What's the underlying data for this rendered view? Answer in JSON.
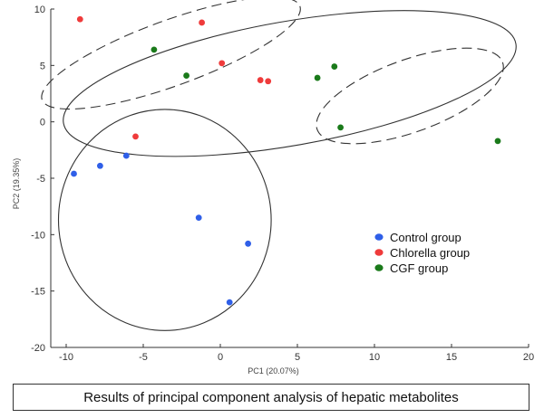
{
  "chart_data": {
    "type": "scatter",
    "title": "",
    "xlabel": "PC1 (20.07%)",
    "ylabel": "PC2 (19.35%)",
    "xlim": [
      -11,
      20
    ],
    "ylim": [
      -20,
      10
    ],
    "xticks": [
      -10,
      -5,
      0,
      5,
      10,
      15,
      20
    ],
    "yticks": [
      10,
      5,
      0,
      -5,
      -10,
      -15,
      -20
    ],
    "grid": false,
    "legend_position": "right",
    "series": [
      {
        "name": "Control group",
        "color": "#2f5fe8",
        "points": [
          [
            -9.5,
            -4.6
          ],
          [
            -7.8,
            -3.9
          ],
          [
            -6.1,
            -3.0
          ],
          [
            -1.4,
            -8.5
          ],
          [
            1.8,
            -10.8
          ],
          [
            0.6,
            -16.0
          ]
        ]
      },
      {
        "name": "Chlorella group",
        "color": "#ef3b3b",
        "points": [
          [
            -9.1,
            9.1
          ],
          [
            -1.2,
            8.8
          ],
          [
            0.1,
            5.2
          ],
          [
            2.6,
            3.7
          ],
          [
            3.1,
            3.6
          ],
          [
            -5.5,
            -1.3
          ]
        ]
      },
      {
        "name": "CGF group",
        "color": "#1a7a1a",
        "points": [
          [
            -4.3,
            6.4
          ],
          [
            -2.2,
            4.1
          ],
          [
            7.4,
            4.9
          ],
          [
            6.3,
            3.9
          ],
          [
            7.8,
            -0.5
          ],
          [
            18.0,
            -1.7
          ]
        ]
      }
    ],
    "clusters": [
      {
        "style": "solid",
        "center": [
          4.5,
          3.4
        ],
        "radii": [
          14.9,
          5.5
        ],
        "rotation_deg": -10
      },
      {
        "style": "dashed",
        "center": [
          -3.2,
          6.1
        ],
        "radii": [
          8.9,
          2.9
        ],
        "rotation_deg": -20
      },
      {
        "style": "dashed",
        "center": [
          12.3,
          2.3
        ],
        "radii": [
          6.4,
          3.2
        ],
        "rotation_deg": -20
      },
      {
        "style": "solid",
        "center": [
          -3.6,
          -8.7
        ],
        "radii": [
          6.9,
          9.8
        ],
        "rotation_deg": 0
      }
    ]
  },
  "caption": "Results of principal component analysis of hepatic metabolites"
}
